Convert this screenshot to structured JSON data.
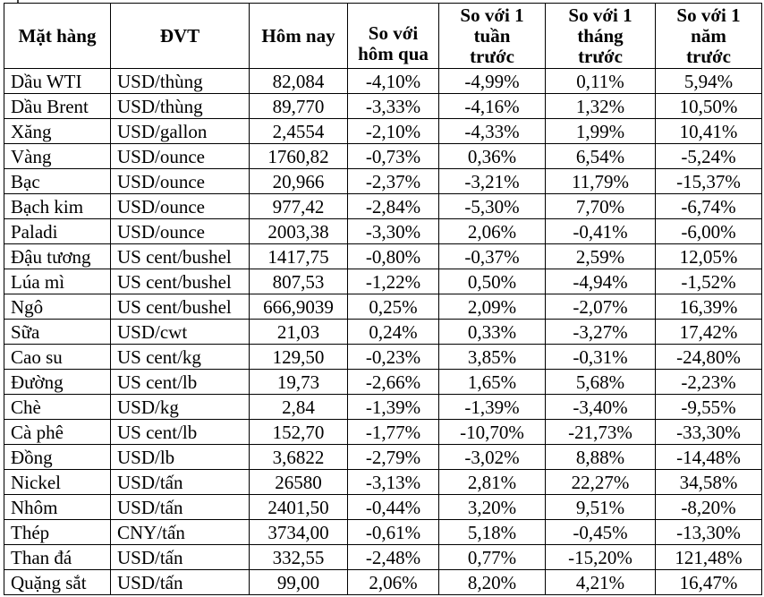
{
  "table": {
    "headers": [
      "Mặt hàng",
      "ĐVT",
      "Hôm nay",
      "So với\nhôm qua",
      "So với 1\ntuần\ntrước",
      "So với 1\ntháng\ntrước",
      "So với 1\nnăm\ntrước"
    ],
    "rows": [
      [
        "Dầu WTI",
        "USD/thùng",
        "82,084",
        "-4,10%",
        "-4,99%",
        "0,11%",
        "5,94%"
      ],
      [
        "Dầu Brent",
        "USD/thùng",
        "89,770",
        "-3,33%",
        "-4,16%",
        "1,32%",
        "10,50%"
      ],
      [
        "Xăng",
        "USD/gallon",
        "2,4554",
        "-2,10%",
        "-4,33%",
        "1,99%",
        "10,41%"
      ],
      [
        "Vàng",
        "USD/ounce",
        "1760,82",
        "-0,73%",
        "0,36%",
        "6,54%",
        "-5,24%"
      ],
      [
        "Bạc",
        "USD/ounce",
        "20,966",
        "-2,37%",
        "-3,21%",
        "11,79%",
        "-15,37%"
      ],
      [
        "Bạch kim",
        "USD/ounce",
        "977,42",
        "-2,84%",
        "-5,30%",
        "7,70%",
        "-6,74%"
      ],
      [
        "Paladi",
        "USD/ounce",
        "2003,38",
        "-3,30%",
        "2,06%",
        "-0,41%",
        "-6,00%"
      ],
      [
        "Đậu tương",
        "US cent/bushel",
        "1417,75",
        "-0,80%",
        "-0,37%",
        "2,59%",
        "12,05%"
      ],
      [
        "Lúa mì",
        "US cent/bushel",
        "807,53",
        "-1,22%",
        "0,50%",
        "-4,94%",
        "-1,52%"
      ],
      [
        "Ngô",
        "US cent/bushel",
        "666,9039",
        "0,25%",
        "2,09%",
        "-2,07%",
        "16,39%"
      ],
      [
        "Sữa",
        "USD/cwt",
        "21,03",
        "0,24%",
        "0,33%",
        "-3,27%",
        "17,42%"
      ],
      [
        "Cao su",
        "US cent/kg",
        "129,50",
        "-0,23%",
        "3,85%",
        "-0,31%",
        "-24,80%"
      ],
      [
        "Đường",
        "US cent/lb",
        "19,73",
        "-2,66%",
        "1,65%",
        "5,68%",
        "-2,23%"
      ],
      [
        "Chè",
        "USD/kg",
        "2,84",
        "-1,39%",
        "-1,39%",
        "-3,40%",
        "-9,55%"
      ],
      [
        "Cà phê",
        "US cent/lb",
        "152,70",
        "-1,77%",
        "-10,70%",
        "-21,73%",
        "-33,30%"
      ],
      [
        "Đồng",
        "USD/lb",
        "3,6822",
        "-2,79%",
        "-3,02%",
        "8,88%",
        "-14,48%"
      ],
      [
        "Nickel",
        "USD/tấn",
        "26580",
        "-3,13%",
        "2,81%",
        "22,27%",
        "34,58%"
      ],
      [
        "Nhôm",
        "USD/tấn",
        "2401,50",
        "-0,44%",
        "3,20%",
        "9,51%",
        "-8,20%"
      ],
      [
        "Thép",
        "CNY/tấn",
        "3734,00",
        "-0,61%",
        "5,18%",
        "-0,45%",
        "-13,30%"
      ],
      [
        "Than đá",
        "USD/tấn",
        "332,55",
        "-2,48%",
        "0,77%",
        "-15,20%",
        "121,48%"
      ],
      [
        "Quặng sắt",
        "USD/tấn",
        "99,00",
        "2,06%",
        "8,20%",
        "4,21%",
        "16,47%"
      ]
    ]
  }
}
